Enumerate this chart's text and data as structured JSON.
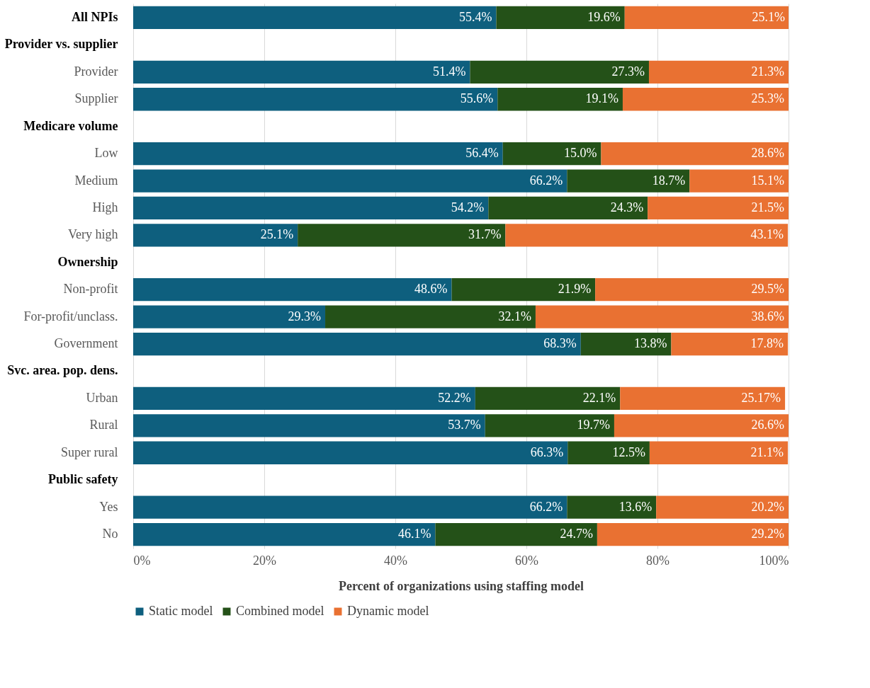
{
  "chart_data": {
    "type": "bar",
    "orientation": "horizontal",
    "stacked": true,
    "xlabel": "Percent of organizations using staffing model",
    "categories": [
      "All NPIs",
      "Provider vs. supplier",
      "Provider",
      "Supplier",
      "Medicare volume",
      "Low",
      "Medium",
      "High",
      "Very high",
      "Ownership",
      "Non-profit",
      "For-profit/unclass.",
      "Government",
      "Svc. area. pop. dens.",
      "Urban",
      "Rural",
      "Super rural",
      "Public safety",
      "Yes",
      "No"
    ],
    "series": [
      {
        "name": "Static model",
        "color": "#0e5f7e",
        "values": [
          55.4,
          null,
          51.4,
          55.6,
          null,
          56.4,
          66.2,
          54.2,
          25.1,
          null,
          48.6,
          29.3,
          68.3,
          null,
          52.2,
          53.7,
          66.3,
          null,
          66.2,
          46.1
        ],
        "value_labels": [
          "55.4%",
          null,
          "51.4%",
          "55.6%",
          null,
          "56.4%",
          "66.2%",
          "54.2%",
          "25.1%",
          null,
          "48.6%",
          "29.3%",
          "68.3%",
          null,
          "52.2%",
          "53.7%",
          "66.3%",
          null,
          "66.2%",
          "46.1%"
        ]
      },
      {
        "name": "Combined model",
        "color": "#245118",
        "values": [
          19.6,
          null,
          27.3,
          19.1,
          null,
          15.0,
          18.7,
          24.3,
          31.7,
          null,
          21.9,
          32.1,
          13.8,
          null,
          22.1,
          19.7,
          12.5,
          null,
          13.6,
          24.7
        ],
        "value_labels": [
          "19.6%",
          null,
          "27.3%",
          "19.1%",
          null,
          "15.0%",
          "18.7%",
          "24.3%",
          "31.7%",
          null,
          "21.9%",
          "32.1%",
          "13.8%",
          null,
          "22.1%",
          "19.7%",
          "12.5%",
          null,
          "13.6%",
          "24.7%"
        ]
      },
      {
        "name": "Dynamic model",
        "color": "#e97132",
        "values": [
          25.1,
          null,
          21.3,
          25.3,
          null,
          28.6,
          15.1,
          21.5,
          43.1,
          null,
          29.5,
          38.6,
          17.8,
          null,
          25.17,
          26.6,
          21.1,
          null,
          20.2,
          29.2
        ],
        "value_labels": [
          "25.1%",
          null,
          "21.3%",
          "25.3%",
          null,
          "28.6%",
          "15.1%",
          "21.5%",
          "43.1%",
          null,
          "29.5%",
          "38.6%",
          "17.8%",
          null,
          "25.17%",
          "26.6%",
          "21.1%",
          null,
          "20.2%",
          "29.2%"
        ]
      }
    ],
    "xlim": [
      0,
      100
    ],
    "xticks": [
      {
        "value": 0,
        "label": "0%"
      },
      {
        "value": 20,
        "label": "20%"
      },
      {
        "value": 40,
        "label": "40%"
      },
      {
        "value": 60,
        "label": "60%"
      },
      {
        "value": 80,
        "label": "80%"
      },
      {
        "value": 100,
        "label": "100%"
      }
    ],
    "grid": "x",
    "legend": "bottom"
  }
}
